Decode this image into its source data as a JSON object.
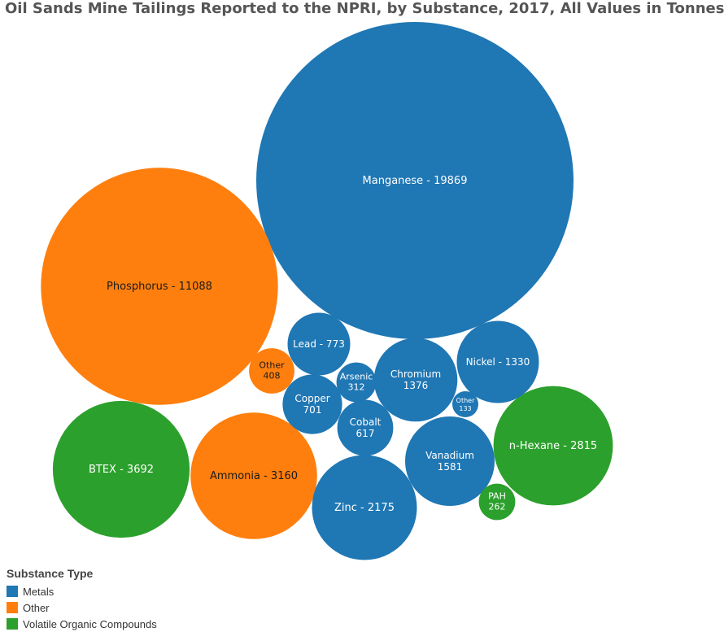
{
  "chart_data": {
    "type": "bubble",
    "title": "Oil Sands Mine Tailings Reported to the NPRI, by Substance, 2017, All Values in Tonnes",
    "legend": {
      "title": "Substance Type",
      "placement": "bottom-left",
      "entries": [
        {
          "name": "Metals",
          "color": "#1f77b4"
        },
        {
          "name": "Other",
          "color": "#ff7f0e"
        },
        {
          "name": "Volatile Organic Compounds",
          "color": "#2ca02c"
        }
      ]
    },
    "bubbles": [
      {
        "name": "Manganese",
        "value": 19869,
        "type": "Metals",
        "label": "Manganese - 19869"
      },
      {
        "name": "Phosphorus",
        "value": 11088,
        "type": "Other",
        "label": "Phosphorus - 11088"
      },
      {
        "name": "BTEX",
        "value": 3692,
        "type": "Volatile Organic Compounds",
        "label": "BTEX - 3692"
      },
      {
        "name": "Ammonia",
        "value": 3160,
        "type": "Other",
        "label": "Ammonia - 3160"
      },
      {
        "name": "n-Hexane",
        "value": 2815,
        "type": "Volatile Organic Compounds",
        "label": "n-Hexane - 2815"
      },
      {
        "name": "Zinc",
        "value": 2175,
        "type": "Metals",
        "label": "Zinc - 2175"
      },
      {
        "name": "Vanadium",
        "value": 1581,
        "type": "Metals",
        "label": "Vanadium\n1581"
      },
      {
        "name": "Chromium",
        "value": 1376,
        "type": "Metals",
        "label": "Chromium\n1376"
      },
      {
        "name": "Nickel",
        "value": 1330,
        "type": "Metals",
        "label": "Nickel - 1330"
      },
      {
        "name": "Lead",
        "value": 773,
        "type": "Metals",
        "label": "Lead - 773"
      },
      {
        "name": "Copper",
        "value": 701,
        "type": "Metals",
        "label": "Copper\n701"
      },
      {
        "name": "Cobalt",
        "value": 617,
        "type": "Metals",
        "label": "Cobalt\n617"
      },
      {
        "name": "Other",
        "value": 408,
        "type": "Other",
        "label": "Other\n408"
      },
      {
        "name": "Arsenic",
        "value": 312,
        "type": "Metals",
        "label": "Arsenic\n312"
      },
      {
        "name": "PAH",
        "value": 262,
        "type": "Volatile Organic Compounds",
        "label": "PAH\n262"
      },
      {
        "name": "Other",
        "value": 133,
        "type": "Metals",
        "label": "Other\n133"
      }
    ]
  }
}
